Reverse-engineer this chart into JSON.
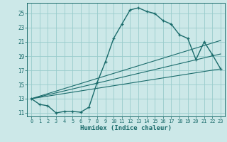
{
  "xlabel": "Humidex (Indice chaleur)",
  "bg_color": "#cce8e8",
  "grid_color": "#99cccc",
  "line_color": "#1a6b6b",
  "xlim": [
    -0.5,
    23.5
  ],
  "ylim": [
    10.5,
    26.5
  ],
  "xticks": [
    0,
    1,
    2,
    3,
    4,
    5,
    6,
    7,
    8,
    9,
    10,
    11,
    12,
    13,
    14,
    15,
    16,
    17,
    18,
    19,
    20,
    21,
    22,
    23
  ],
  "yticks": [
    11,
    13,
    15,
    17,
    19,
    21,
    23,
    25
  ],
  "main_curve_x": [
    0,
    1,
    2,
    3,
    4,
    5,
    6,
    7,
    8,
    9,
    10,
    11,
    12,
    13,
    14,
    15,
    16,
    17,
    18,
    19,
    20,
    21,
    22,
    23
  ],
  "main_curve_y": [
    13.0,
    12.2,
    12.0,
    11.0,
    11.2,
    11.2,
    11.1,
    11.8,
    15.3,
    18.2,
    21.5,
    23.5,
    25.5,
    25.8,
    25.3,
    25.0,
    24.0,
    23.5,
    22.0,
    21.5,
    18.5,
    21.0,
    19.2,
    17.2
  ],
  "line2_x": [
    0,
    23
  ],
  "line2_y": [
    13.0,
    17.2
  ],
  "line3_x": [
    0,
    23
  ],
  "line3_y": [
    13.0,
    19.3
  ],
  "line4_x": [
    0,
    23
  ],
  "line4_y": [
    13.0,
    21.2
  ]
}
